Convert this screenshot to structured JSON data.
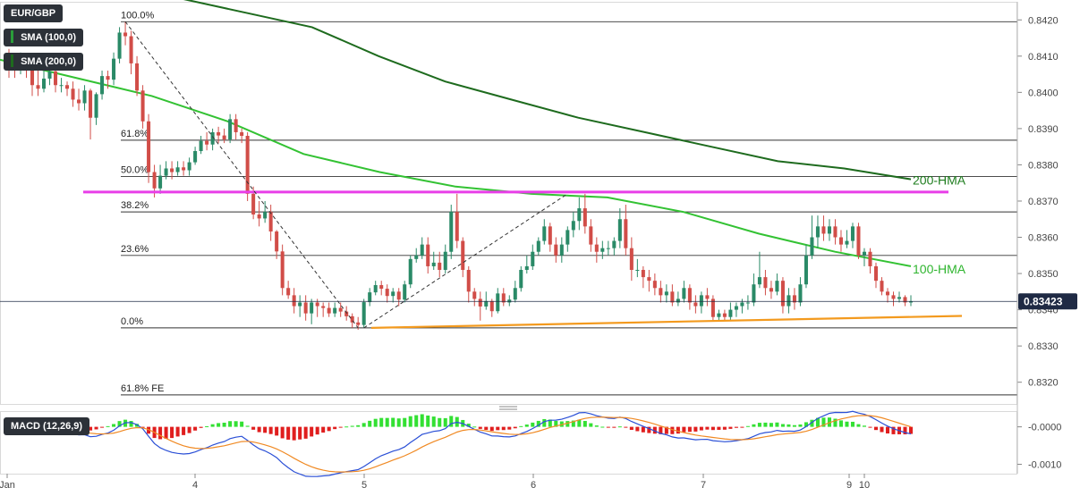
{
  "legend": {
    "symbol": "EUR/GBP",
    "sma100": "SMA (100,0)",
    "sma200": "SMA (200,0)",
    "macd": "MACD (12,26,9)",
    "sma100_color": "#2a9d3a",
    "sma200_color": "#1e6b1e"
  },
  "current_price": "0.83423",
  "chart_data": [
    {
      "type": "candlestick",
      "instrument": "EUR/GBP",
      "y_axis": {
        "ylim": [
          0.8314,
          0.8425
        ],
        "ticks": [
          "0.8320",
          "0.8330",
          "0.8340",
          "0.8350",
          "0.8360",
          "0.8370",
          "0.8380",
          "0.8390",
          "0.8400",
          "0.8410",
          "0.8420"
        ]
      },
      "x_axis": {
        "tick_labels": [
          "Jan",
          "4",
          "5",
          "6",
          "7",
          "9",
          "10"
        ]
      },
      "fibonacci": [
        {
          "label": "100.0%",
          "price": 0.84195
        },
        {
          "label": "61.8%",
          "price": 0.83868
        },
        {
          "label": "50.0%",
          "price": 0.83768
        },
        {
          "label": "38.2%",
          "price": 0.8367
        },
        {
          "label": "23.6%",
          "price": 0.8355
        },
        {
          "label": "0.0%",
          "price": 0.8335
        },
        {
          "label": "61.8% FE",
          "price": 0.83165
        }
      ],
      "annotations": [
        {
          "text": "200-HMA",
          "color": "#1e7d1e"
        },
        {
          "text": "100-HMA",
          "color": "#2fb52f"
        }
      ],
      "hma200": [
        0.8426,
        0.8422,
        0.8418,
        0.841,
        0.8403,
        0.8398,
        0.8393,
        0.8389,
        0.8385,
        0.8381,
        0.8379,
        0.8376
      ],
      "hma100": [
        0.8409,
        0.8404,
        0.8399,
        0.8392,
        0.8383,
        0.8378,
        0.8374,
        0.8372,
        0.8371,
        0.8367,
        0.8361,
        0.8356,
        0.8352
      ],
      "resistance_line": 0.83725,
      "support_trendline": [
        0.8335,
        0.83383
      ],
      "candles": [
        [
          0.8408,
          0.84075,
          0.8412,
          0.8404
        ],
        [
          0.84075,
          0.84062,
          0.841,
          0.8404
        ],
        [
          0.84062,
          0.84078,
          0.8411,
          0.8405
        ],
        [
          0.84078,
          0.84072,
          0.841,
          0.8404
        ],
        [
          0.84072,
          0.8402,
          0.8409,
          0.8399
        ],
        [
          0.8402,
          0.8401,
          0.8406,
          0.8399
        ],
        [
          0.8401,
          0.84038,
          0.8406,
          0.84
        ],
        [
          0.84038,
          0.84058,
          0.84075,
          0.8402
        ],
        [
          0.84058,
          0.8402,
          0.8408,
          0.84
        ],
        [
          0.8402,
          0.8402,
          0.8404,
          0.84
        ],
        [
          0.8402,
          0.8401,
          0.8403,
          0.8399
        ],
        [
          0.8401,
          0.8398,
          0.8403,
          0.8396
        ],
        [
          0.8398,
          0.8397,
          0.8401,
          0.8395
        ],
        [
          0.8397,
          0.84005,
          0.8402,
          0.8395
        ],
        [
          0.84005,
          0.8393,
          0.8401,
          0.8387
        ],
        [
          0.8393,
          0.83995,
          0.84,
          0.8391
        ],
        [
          0.83995,
          0.84045,
          0.8406,
          0.8398
        ],
        [
          0.84045,
          0.84035,
          0.8406,
          0.8401
        ],
        [
          0.84035,
          0.84093,
          0.8411,
          0.8402
        ],
        [
          0.84093,
          0.84165,
          0.8418,
          0.8408
        ],
        [
          0.84165,
          0.84155,
          0.84195,
          0.8413
        ],
        [
          0.84155,
          0.8408,
          0.8417,
          0.8405
        ],
        [
          0.8408,
          0.84005,
          0.841,
          0.8399
        ],
        [
          0.84005,
          0.8392,
          0.8402,
          0.839
        ],
        [
          0.8392,
          0.8378,
          0.8394,
          0.8375
        ],
        [
          0.8378,
          0.83735,
          0.838,
          0.8371
        ],
        [
          0.83735,
          0.8377,
          0.838,
          0.8372
        ],
        [
          0.8377,
          0.8379,
          0.8381,
          0.8376
        ],
        [
          0.8379,
          0.8378,
          0.8381,
          0.8376
        ],
        [
          0.8378,
          0.83793,
          0.8381,
          0.8377
        ],
        [
          0.83793,
          0.83785,
          0.8381,
          0.8377
        ],
        [
          0.83785,
          0.83807,
          0.8382,
          0.8377
        ],
        [
          0.83807,
          0.83838,
          0.8385,
          0.838
        ],
        [
          0.83838,
          0.83866,
          0.8388,
          0.8383
        ],
        [
          0.83866,
          0.83856,
          0.8389,
          0.8384
        ],
        [
          0.83856,
          0.8389,
          0.839,
          0.8384
        ],
        [
          0.8389,
          0.83881,
          0.83905,
          0.8386
        ],
        [
          0.83881,
          0.8387,
          0.839,
          0.8386
        ],
        [
          0.8387,
          0.83926,
          0.8394,
          0.8386
        ],
        [
          0.83926,
          0.8389,
          0.8394,
          0.8387
        ],
        [
          0.8389,
          0.8388,
          0.839,
          0.8386
        ],
        [
          0.8388,
          0.8372,
          0.8389,
          0.837
        ],
        [
          0.8372,
          0.83663,
          0.8374,
          0.8365
        ],
        [
          0.83663,
          0.83652,
          0.837,
          0.8363
        ],
        [
          0.83652,
          0.8367,
          0.837,
          0.8364
        ],
        [
          0.8367,
          0.83616,
          0.8369,
          0.8359
        ],
        [
          0.83616,
          0.83561,
          0.8362,
          0.8354
        ],
        [
          0.83561,
          0.8346,
          0.8358,
          0.8344
        ],
        [
          0.8346,
          0.8344,
          0.8348,
          0.8343
        ],
        [
          0.8344,
          0.8341,
          0.8346,
          0.8339
        ],
        [
          0.8341,
          0.8342,
          0.8344,
          0.8338
        ],
        [
          0.8342,
          0.8339,
          0.8344,
          0.8337
        ],
        [
          0.8339,
          0.8342,
          0.8343,
          0.8336
        ],
        [
          0.8342,
          0.8341,
          0.8343,
          0.8338
        ],
        [
          0.8341,
          0.83405,
          0.8342,
          0.8338
        ],
        [
          0.83405,
          0.8339,
          0.8342,
          0.8338
        ],
        [
          0.8339,
          0.83405,
          0.8342,
          0.8338
        ],
        [
          0.83405,
          0.83395,
          0.8342,
          0.8338
        ],
        [
          0.83395,
          0.83382,
          0.8341,
          0.8337
        ],
        [
          0.83382,
          0.83365,
          0.8339,
          0.8335
        ],
        [
          0.83365,
          0.83358,
          0.8338,
          0.83345
        ],
        [
          0.83358,
          0.83421,
          0.8343,
          0.8335
        ],
        [
          0.83421,
          0.83448,
          0.8346,
          0.8341
        ],
        [
          0.83448,
          0.83468,
          0.8348,
          0.8344
        ],
        [
          0.83468,
          0.83458,
          0.8348,
          0.8344
        ],
        [
          0.83458,
          0.83438,
          0.8347,
          0.8342
        ],
        [
          0.83438,
          0.8345,
          0.8346,
          0.8342
        ],
        [
          0.8345,
          0.83428,
          0.8346,
          0.8341
        ],
        [
          0.83428,
          0.8347,
          0.8348,
          0.8342
        ],
        [
          0.8347,
          0.8354,
          0.8355,
          0.8346
        ],
        [
          0.8354,
          0.8355,
          0.8357,
          0.8353
        ],
        [
          0.8355,
          0.8358,
          0.836,
          0.8354
        ],
        [
          0.8358,
          0.8352,
          0.836,
          0.835
        ],
        [
          0.8352,
          0.8353,
          0.8356,
          0.8351
        ],
        [
          0.8353,
          0.8351,
          0.8356,
          0.8349
        ],
        [
          0.8351,
          0.8356,
          0.8358,
          0.835
        ],
        [
          0.8356,
          0.8367,
          0.8369,
          0.8354
        ],
        [
          0.8367,
          0.8359,
          0.8372,
          0.8357
        ],
        [
          0.8359,
          0.8351,
          0.836,
          0.8349
        ],
        [
          0.8351,
          0.8345,
          0.8352,
          0.8342
        ],
        [
          0.8345,
          0.8343,
          0.8346,
          0.8341
        ],
        [
          0.8343,
          0.83409,
          0.8345,
          0.8337
        ],
        [
          0.83409,
          0.83424,
          0.8345,
          0.834
        ],
        [
          0.83424,
          0.83396,
          0.8343,
          0.8338
        ],
        [
          0.83396,
          0.83445,
          0.8346,
          0.8339
        ],
        [
          0.83445,
          0.8342,
          0.8346,
          0.8341
        ],
        [
          0.8342,
          0.83428,
          0.8344,
          0.8341
        ],
        [
          0.83428,
          0.8346,
          0.8348,
          0.8342
        ],
        [
          0.8346,
          0.8351,
          0.8352,
          0.8345
        ],
        [
          0.8351,
          0.8352,
          0.8355,
          0.835
        ],
        [
          0.8352,
          0.8356,
          0.8358,
          0.8351
        ],
        [
          0.8356,
          0.8359,
          0.836,
          0.8355
        ],
        [
          0.8359,
          0.8363,
          0.8365,
          0.8358
        ],
        [
          0.8363,
          0.8358,
          0.8364,
          0.8356
        ],
        [
          0.8358,
          0.8355,
          0.836,
          0.8353
        ],
        [
          0.8355,
          0.8358,
          0.836,
          0.8353
        ],
        [
          0.8358,
          0.8362,
          0.8363,
          0.8356
        ],
        [
          0.8362,
          0.83645,
          0.8367,
          0.836
        ],
        [
          0.83645,
          0.8368,
          0.8371,
          0.8362
        ],
        [
          0.8368,
          0.8363,
          0.8372,
          0.8361
        ],
        [
          0.8363,
          0.8358,
          0.8365,
          0.8356
        ],
        [
          0.8358,
          0.8356,
          0.836,
          0.8353
        ],
        [
          0.8356,
          0.8357,
          0.8359,
          0.8354
        ],
        [
          0.8357,
          0.8357,
          0.8359,
          0.8355
        ],
        [
          0.8357,
          0.8359,
          0.836,
          0.8355
        ],
        [
          0.8359,
          0.8365,
          0.8368,
          0.8357
        ],
        [
          0.8365,
          0.8357,
          0.8369,
          0.8355
        ],
        [
          0.8357,
          0.8351,
          0.836,
          0.8348
        ],
        [
          0.8351,
          0.8351,
          0.8354,
          0.8349
        ],
        [
          0.8351,
          0.8349,
          0.8352,
          0.8346
        ],
        [
          0.8349,
          0.8348,
          0.8351,
          0.8345
        ],
        [
          0.8348,
          0.8346,
          0.835,
          0.8344
        ],
        [
          0.8346,
          0.8344,
          0.8348,
          0.8342
        ],
        [
          0.8344,
          0.8345,
          0.8347,
          0.8342
        ],
        [
          0.8345,
          0.8342,
          0.8347,
          0.8341
        ],
        [
          0.8342,
          0.8343,
          0.8345,
          0.8341
        ],
        [
          0.8343,
          0.8346,
          0.8348,
          0.8342
        ],
        [
          0.8346,
          0.8342,
          0.8347,
          0.834
        ],
        [
          0.8342,
          0.8341,
          0.8344,
          0.8339
        ],
        [
          0.8341,
          0.8344,
          0.8345,
          0.8339
        ],
        [
          0.8344,
          0.8343,
          0.8346,
          0.8341
        ],
        [
          0.8343,
          0.8338,
          0.8344,
          0.8337
        ],
        [
          0.8338,
          0.8339,
          0.834,
          0.8337
        ],
        [
          0.8339,
          0.8338,
          0.834,
          0.8337
        ],
        [
          0.8338,
          0.834,
          0.8342,
          0.8337
        ],
        [
          0.834,
          0.8341,
          0.8342,
          0.8338
        ],
        [
          0.8341,
          0.8342,
          0.8343,
          0.8339
        ],
        [
          0.8342,
          0.8342,
          0.8344,
          0.834
        ],
        [
          0.8342,
          0.8347,
          0.835,
          0.8341
        ],
        [
          0.8347,
          0.8349,
          0.8356,
          0.8346
        ],
        [
          0.8349,
          0.8346,
          0.8351,
          0.8344
        ],
        [
          0.8346,
          0.8345,
          0.8348,
          0.8343
        ],
        [
          0.8345,
          0.8348,
          0.835,
          0.8344
        ],
        [
          0.8348,
          0.8341,
          0.8349,
          0.8339
        ],
        [
          0.8341,
          0.8344,
          0.8346,
          0.8339
        ],
        [
          0.8344,
          0.8342,
          0.8346,
          0.834
        ],
        [
          0.8342,
          0.8347,
          0.8349,
          0.8341
        ],
        [
          0.8347,
          0.8355,
          0.8358,
          0.8346
        ],
        [
          0.8355,
          0.836,
          0.8366,
          0.8354
        ],
        [
          0.836,
          0.8363,
          0.8366,
          0.8357
        ],
        [
          0.8363,
          0.8361,
          0.8366,
          0.8359
        ],
        [
          0.8361,
          0.8363,
          0.8365,
          0.8359
        ],
        [
          0.8363,
          0.836,
          0.8365,
          0.8358
        ],
        [
          0.836,
          0.8358,
          0.8362,
          0.8356
        ],
        [
          0.8358,
          0.8359,
          0.8362,
          0.8357
        ],
        [
          0.8359,
          0.8363,
          0.8364,
          0.8357
        ],
        [
          0.8363,
          0.8355,
          0.8364,
          0.8354
        ],
        [
          0.8355,
          0.8356,
          0.8357,
          0.8352
        ],
        [
          0.8356,
          0.8352,
          0.8357,
          0.835
        ],
        [
          0.8352,
          0.8348,
          0.8353,
          0.8346
        ],
        [
          0.8348,
          0.8345,
          0.8349,
          0.8344
        ],
        [
          0.8345,
          0.8344,
          0.8346,
          0.8342
        ],
        [
          0.8344,
          0.8343,
          0.8345,
          0.8341
        ],
        [
          0.8343,
          0.83435,
          0.8345,
          0.8342
        ],
        [
          0.83435,
          0.8342,
          0.8344,
          0.8341
        ],
        [
          0.8342,
          0.83423,
          0.8344,
          0.8341
        ]
      ],
      "panel": {
        "name": "MACD",
        "legend": "MACD (12,26,9)",
        "ylim": [
          -0.00125,
          0.00042
        ],
        "ticks": [
          "-0.0000",
          "-0.0010"
        ]
      }
    }
  ]
}
